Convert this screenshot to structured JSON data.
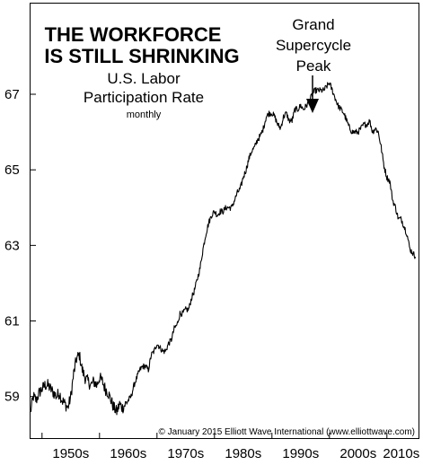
{
  "chart_data": {
    "type": "line",
    "title_lines": [
      "THE WORKFORCE",
      "IS STILL SHRINKING"
    ],
    "subtitle_lines": [
      "U.S. Labor",
      "Participation Rate"
    ],
    "note": "monthly",
    "annotation": {
      "lines": [
        "Grand",
        "Supercycle",
        "Peak"
      ],
      "x": 2000.2,
      "y": 67.3
    },
    "credit": "© January 2015 Elliott Wave International (www.elliottwave.com)",
    "x_ticks": [
      {
        "label": "1950s",
        "x": 1955
      },
      {
        "label": "1960s",
        "x": 1965
      },
      {
        "label": "1970s",
        "x": 1975
      },
      {
        "label": "1980s",
        "x": 1985
      },
      {
        "label": "1990s",
        "x": 1995
      },
      {
        "label": "2000s",
        "x": 2005
      },
      {
        "label": "2010s",
        "x": 2012.5
      }
    ],
    "x_boundaries": [
      1950,
      1960,
      1970,
      1980,
      1990,
      2000,
      2010
    ],
    "y_ticks": [
      59,
      61,
      63,
      65,
      67
    ],
    "xlim": [
      1948,
      2015.5
    ],
    "ylim": [
      57.9,
      69.4
    ],
    "series": [
      {
        "values": [
          [
            1948.0,
            58.6
          ],
          [
            1948.5,
            59.0
          ],
          [
            1949.0,
            58.9
          ],
          [
            1949.5,
            59.1
          ],
          [
            1950.0,
            59.2
          ],
          [
            1950.5,
            59.3
          ],
          [
            1951.0,
            59.3
          ],
          [
            1951.5,
            59.2
          ],
          [
            1952.0,
            59.1
          ],
          [
            1952.5,
            59.0
          ],
          [
            1953.0,
            59.1
          ],
          [
            1953.5,
            58.9
          ],
          [
            1954.0,
            58.8
          ],
          [
            1954.5,
            58.7
          ],
          [
            1955.0,
            59.0
          ],
          [
            1955.5,
            59.6
          ],
          [
            1956.0,
            60.0
          ],
          [
            1956.5,
            60.1
          ],
          [
            1957.0,
            59.7
          ],
          [
            1957.5,
            59.5
          ],
          [
            1958.0,
            59.4
          ],
          [
            1958.5,
            59.3
          ],
          [
            1959.0,
            59.4
          ],
          [
            1959.5,
            59.3
          ],
          [
            1960.0,
            59.5
          ],
          [
            1960.5,
            59.4
          ],
          [
            1961.0,
            59.2
          ],
          [
            1961.5,
            59.1
          ],
          [
            1962.0,
            58.9
          ],
          [
            1962.5,
            58.7
          ],
          [
            1963.0,
            58.6
          ],
          [
            1963.5,
            58.8
          ],
          [
            1964.0,
            58.7
          ],
          [
            1964.5,
            58.8
          ],
          [
            1965.0,
            58.9
          ],
          [
            1965.5,
            59.0
          ],
          [
            1966.0,
            59.3
          ],
          [
            1966.5,
            59.5
          ],
          [
            1967.0,
            59.7
          ],
          [
            1967.5,
            59.8
          ],
          [
            1968.0,
            59.8
          ],
          [
            1968.5,
            59.7
          ],
          [
            1969.0,
            60.1
          ],
          [
            1969.5,
            60.2
          ],
          [
            1970.0,
            60.4
          ],
          [
            1970.5,
            60.3
          ],
          [
            1971.0,
            60.2
          ],
          [
            1971.5,
            60.2
          ],
          [
            1972.0,
            60.4
          ],
          [
            1972.5,
            60.5
          ],
          [
            1973.0,
            60.8
          ],
          [
            1973.5,
            60.9
          ],
          [
            1974.0,
            61.2
          ],
          [
            1974.5,
            61.2
          ],
          [
            1975.0,
            61.3
          ],
          [
            1975.5,
            61.3
          ],
          [
            1976.0,
            61.6
          ],
          [
            1976.5,
            61.8
          ],
          [
            1977.0,
            62.1
          ],
          [
            1977.5,
            62.4
          ],
          [
            1978.0,
            62.9
          ],
          [
            1978.5,
            63.3
          ],
          [
            1979.0,
            63.6
          ],
          [
            1979.5,
            63.8
          ],
          [
            1980.0,
            63.9
          ],
          [
            1980.5,
            63.8
          ],
          [
            1981.0,
            63.9
          ],
          [
            1981.5,
            63.9
          ],
          [
            1982.0,
            64.0
          ],
          [
            1982.5,
            64.0
          ],
          [
            1983.0,
            64.0
          ],
          [
            1983.5,
            64.2
          ],
          [
            1984.0,
            64.4
          ],
          [
            1984.5,
            64.5
          ],
          [
            1985.0,
            64.8
          ],
          [
            1985.5,
            65.0
          ],
          [
            1986.0,
            65.3
          ],
          [
            1986.5,
            65.5
          ],
          [
            1987.0,
            65.6
          ],
          [
            1987.5,
            65.8
          ],
          [
            1988.0,
            65.9
          ],
          [
            1988.5,
            66.1
          ],
          [
            1989.0,
            66.4
          ],
          [
            1989.5,
            66.5
          ],
          [
            1990.0,
            66.5
          ],
          [
            1990.5,
            66.4
          ],
          [
            1991.0,
            66.2
          ],
          [
            1991.5,
            66.1
          ],
          [
            1992.0,
            66.4
          ],
          [
            1992.5,
            66.5
          ],
          [
            1993.0,
            66.3
          ],
          [
            1993.5,
            66.3
          ],
          [
            1994.0,
            66.6
          ],
          [
            1994.5,
            66.6
          ],
          [
            1995.0,
            66.7
          ],
          [
            1995.5,
            66.6
          ],
          [
            1996.0,
            66.7
          ],
          [
            1996.5,
            66.8
          ],
          [
            1997.0,
            67.0
          ],
          [
            1997.5,
            67.1
          ],
          [
            1998.0,
            67.1
          ],
          [
            1998.5,
            67.1
          ],
          [
            1999.0,
            67.1
          ],
          [
            1999.5,
            67.2
          ],
          [
            2000.0,
            67.3
          ],
          [
            2000.5,
            67.1
          ],
          [
            2001.0,
            66.9
          ],
          [
            2001.5,
            66.7
          ],
          [
            2002.0,
            66.6
          ],
          [
            2002.5,
            66.5
          ],
          [
            2003.0,
            66.3
          ],
          [
            2003.5,
            66.1
          ],
          [
            2004.0,
            66.0
          ],
          [
            2004.5,
            66.0
          ],
          [
            2005.0,
            66.0
          ],
          [
            2005.5,
            66.1
          ],
          [
            2006.0,
            66.2
          ],
          [
            2006.5,
            66.2
          ],
          [
            2007.0,
            66.3
          ],
          [
            2007.5,
            66.0
          ],
          [
            2008.0,
            66.1
          ],
          [
            2008.5,
            66.0
          ],
          [
            2009.0,
            65.6
          ],
          [
            2009.5,
            65.1
          ],
          [
            2010.0,
            64.8
          ],
          [
            2010.5,
            64.7
          ],
          [
            2011.0,
            64.2
          ],
          [
            2011.5,
            64.0
          ],
          [
            2012.0,
            63.7
          ],
          [
            2012.5,
            63.7
          ],
          [
            2013.0,
            63.5
          ],
          [
            2013.5,
            63.3
          ],
          [
            2014.0,
            62.9
          ],
          [
            2014.5,
            62.8
          ],
          [
            2014.95,
            62.7
          ]
        ]
      }
    ]
  }
}
